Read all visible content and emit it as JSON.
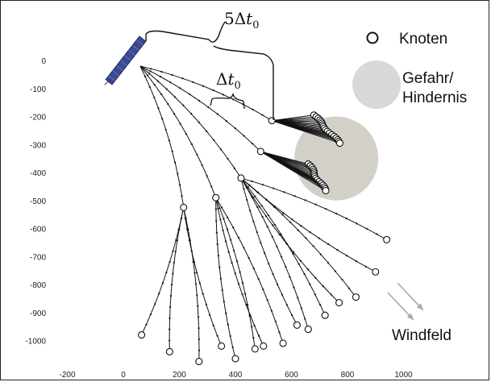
{
  "axes": {
    "x_ticks": [
      -200,
      0,
      200,
      400,
      600,
      800,
      1000
    ],
    "y_ticks": [
      0,
      -100,
      -200,
      -300,
      -400,
      -500,
      -600,
      -700,
      -800,
      -900,
      -1000
    ],
    "xlim": [
      -220,
      1080
    ],
    "ylim": [
      -1070,
      30
    ]
  },
  "legend": {
    "node_label": "Knoten",
    "hazard_label_line1": "Gefahr/",
    "hazard_label_line2": "Hindernis"
  },
  "annotations": {
    "five_dt": {
      "prefix": "5Δ",
      "var": "t",
      "sub": "0"
    },
    "dt": {
      "prefix": "Δ",
      "var": "t",
      "sub": "0"
    },
    "wind_label": "Windfeld"
  },
  "colors": {
    "hazard": "#d3d0c8",
    "hazard_legend": "#d8d8d8",
    "satellite": "#3b4a94",
    "wind_arrow": "#a8a8a8",
    "tree": "#111111"
  },
  "hazard_circle": {
    "cx": 760,
    "cy": -350,
    "r": 150
  },
  "tree": {
    "root": [
      60,
      -20
    ],
    "level1": [
      {
        "id": "A",
        "node": [
          530,
          -215
        ],
        "dir": -75,
        "fan": [
          [
            680,
            -195
          ],
          [
            770,
            -295
          ]
        ],
        "fan_count": 18
      },
      {
        "id": "B",
        "node": [
          490,
          -325
        ],
        "dir": -68,
        "fan": [
          [
            660,
            -370
          ],
          [
            720,
            -465
          ]
        ],
        "fan_count": 16
      },
      {
        "id": "C",
        "node": [
          420,
          -420
        ],
        "dir": -55,
        "leaves": [
          [
            940,
            -640
          ],
          [
            900,
            -755
          ],
          [
            830,
            -845
          ],
          [
            770,
            -865
          ],
          [
            720,
            -910
          ],
          [
            620,
            -945
          ],
          [
            660,
            -960
          ]
        ]
      },
      {
        "id": "D",
        "node": [
          330,
          -490
        ],
        "dir": -45,
        "leaves": [
          [
            570,
            -1010
          ],
          [
            500,
            -1020
          ],
          [
            470,
            -1030
          ],
          [
            400,
            -1065
          ]
        ]
      },
      {
        "id": "E",
        "node": [
          215,
          -525
        ],
        "dir": -30,
        "leaves": [
          [
            65,
            -980
          ],
          [
            165,
            -1040
          ],
          [
            270,
            -1075
          ],
          [
            350,
            -1020
          ]
        ]
      }
    ]
  }
}
